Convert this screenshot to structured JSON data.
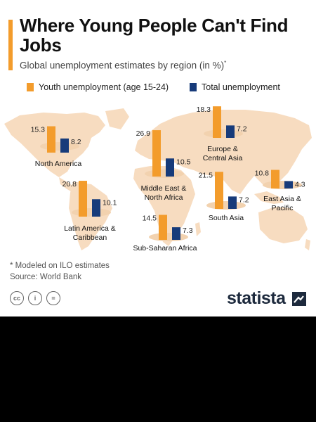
{
  "title": "Where Young People Can't Find Jobs",
  "subtitle": "Global unemployment estimates by region (in %)",
  "subtitle_mark": "*",
  "footnote": "* Modeled on ILO estimates",
  "source": "Source: World Bank",
  "brand": "statista",
  "license_icons": [
    "cc-icon",
    "attribution-icon",
    "no-derivatives-icon"
  ],
  "license_labels": [
    "cc",
    "i",
    "="
  ],
  "colors": {
    "youth": "#f39c2c",
    "total": "#173b7a",
    "accent": "#f39c2c",
    "map": "#f7dcc0",
    "map_base": "#f2d2af",
    "brand": "#1d2a3d"
  },
  "chart_data": {
    "type": "bar",
    "title": "Where Young People Can't Find Jobs",
    "subtitle": "Global unemployment estimates by region (in %)",
    "legend_position": "top",
    "categories": [
      "North America",
      "Europe & Central Asia",
      "Middle East & North Africa",
      "Latin America & Caribbean",
      "South Asia",
      "East Asia & Pacific",
      "Sub-Saharan Africa"
    ],
    "series": [
      {
        "name": "Youth unemployment (age 15-24)",
        "values": [
          15.3,
          18.3,
          26.9,
          20.8,
          21.5,
          10.8,
          14.5
        ]
      },
      {
        "name": "Total unemployment",
        "values": [
          8.2,
          7.2,
          10.5,
          10.1,
          7.2,
          4.3,
          7.3
        ]
      }
    ]
  }
}
